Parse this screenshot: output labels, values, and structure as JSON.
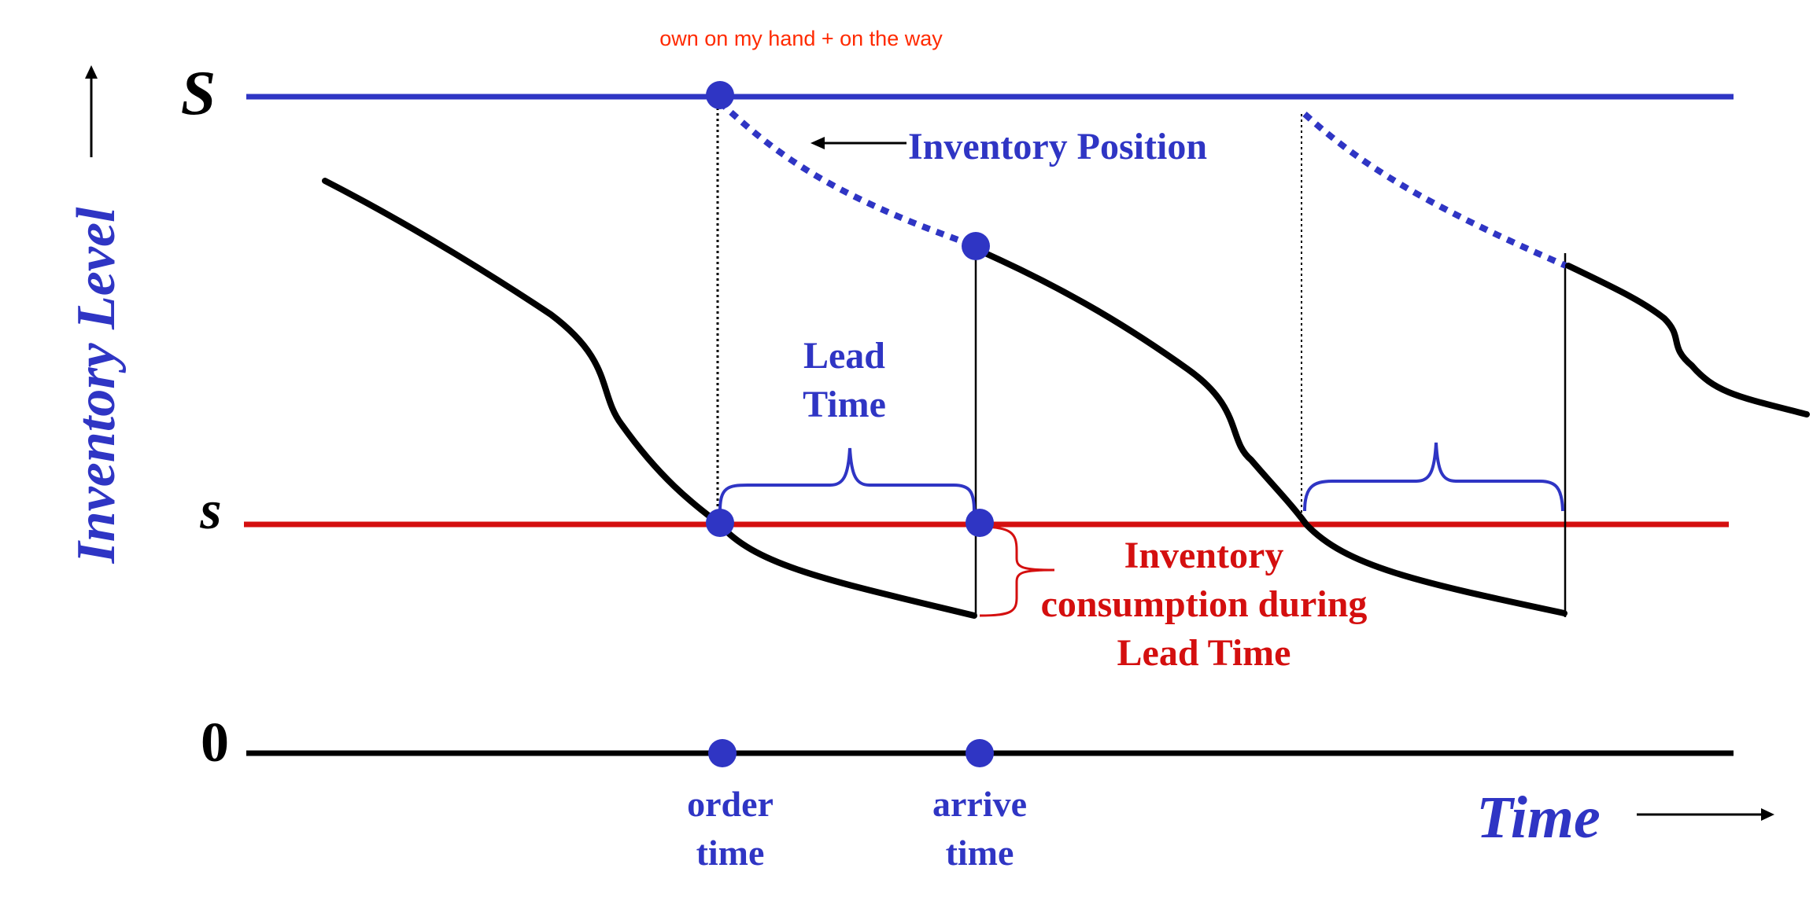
{
  "colors": {
    "blue": "#2f35c4",
    "red": "#d40f0f",
    "annotation_red": "#ff2a00",
    "black": "#000000"
  },
  "labels": {
    "annotation": "own on my hand + on the way",
    "y_axis_title": "Inventory Level",
    "x_axis_title": "Time",
    "level_S": "S",
    "level_s": "s",
    "level_zero": "0",
    "inventory_position": "Inventory Position",
    "lead_time_line1": "Lead",
    "lead_time_line2": "Time",
    "consumption_line1": "Inventory",
    "consumption_line2": "consumption during",
    "consumption_line3": "Lead Time",
    "order_time_line1": "order",
    "order_time_line2": "time",
    "arrive_time_line1": "arrive",
    "arrive_time_line2": "time"
  }
}
